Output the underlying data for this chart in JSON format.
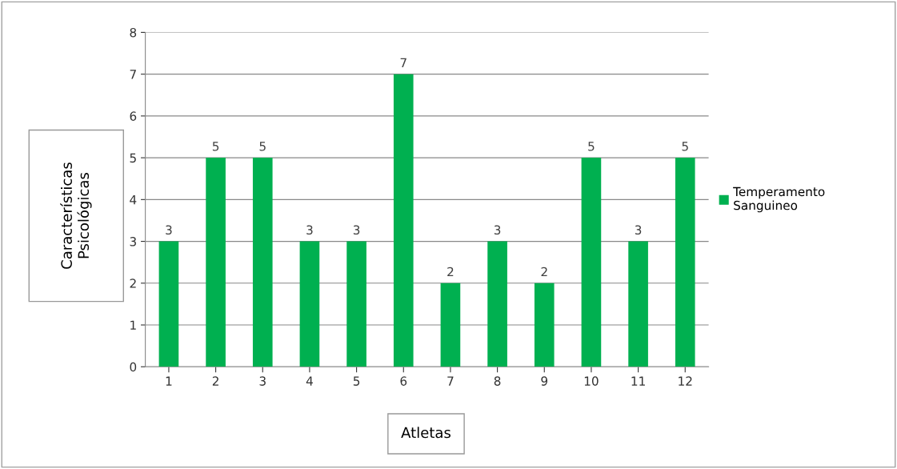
{
  "chart_data": {
    "type": "bar",
    "xlabel": "Atletas",
    "ylabel": "Características\nPsicológicas",
    "categories": [
      "1",
      "2",
      "3",
      "4",
      "5",
      "6",
      "7",
      "8",
      "9",
      "10",
      "11",
      "12"
    ],
    "series": [
      {
        "name": "Temperamento\nSanguineo",
        "color": "#00b050",
        "values": [
          3,
          5,
          5,
          3,
          3,
          7,
          2,
          3,
          2,
          5,
          3,
          5
        ]
      }
    ],
    "ylim": [
      0,
      8
    ],
    "yticks": [
      0,
      1,
      2,
      3,
      4,
      5,
      6,
      7,
      8
    ],
    "grid": "y",
    "legend": "right",
    "data_labels": true
  }
}
